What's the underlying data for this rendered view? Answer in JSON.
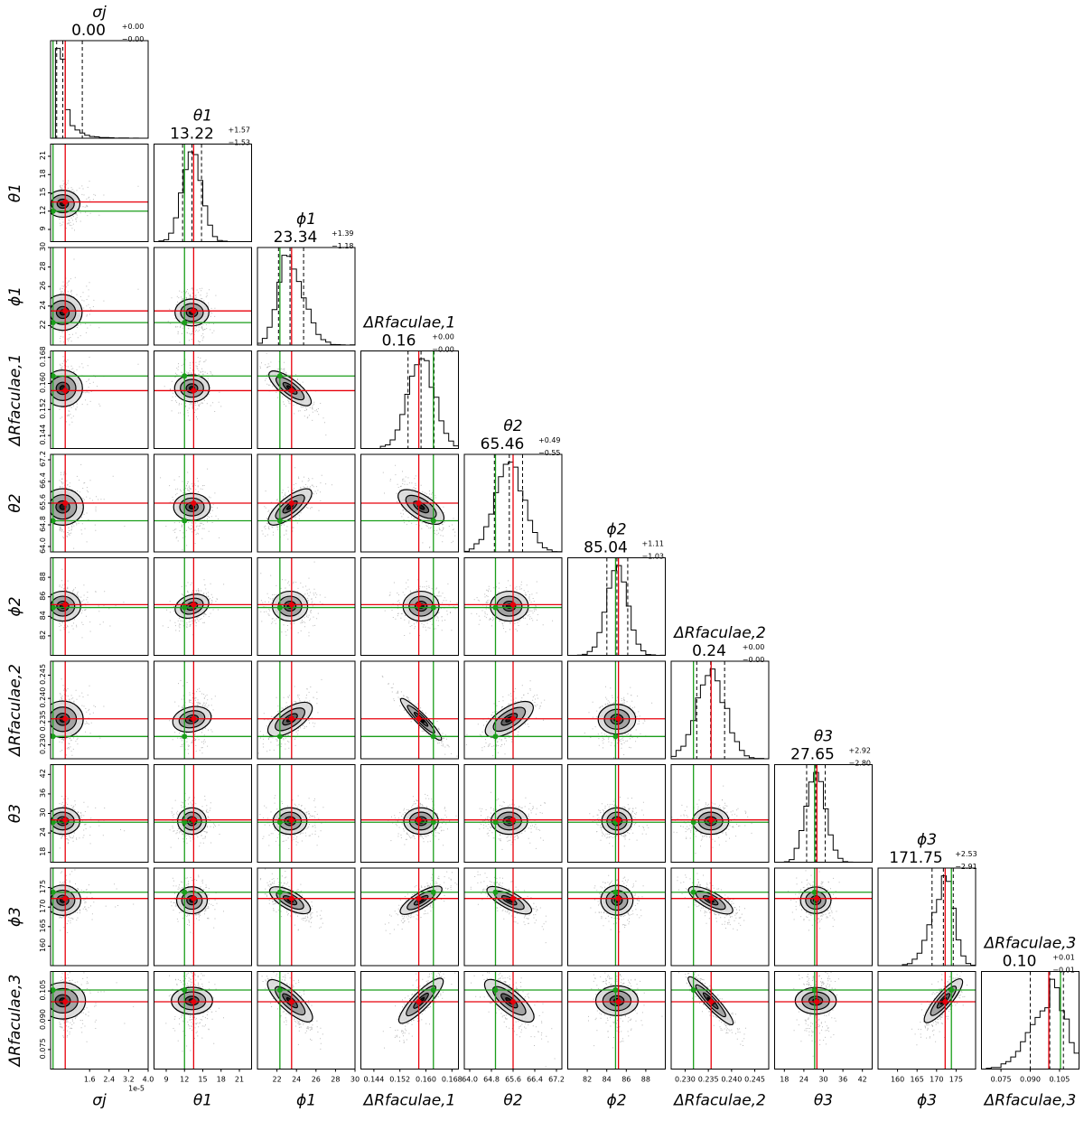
{
  "chart_data": {
    "type": "corner",
    "parameters": [
      {
        "key": "sigma_j",
        "label": "σj",
        "title_value": "0.00",
        "title_plus": "+0.00",
        "title_minus": "−0.00",
        "range": [
          0.0,
          4e-05
        ],
        "ticks": [
          1.6e-05,
          2.4e-05,
          3.2e-05,
          4e-05
        ],
        "tick_labels": [
          "1.6",
          "2.4",
          "3.2",
          "4.0"
        ],
        "offset_text": "1e-5",
        "median": 5e-06,
        "q16": 2.5e-06,
        "q84": 1.3e-05,
        "truth_red": 6e-06,
        "truth_green": 1e-06,
        "dist": "expo"
      },
      {
        "key": "theta_1",
        "label": "θ1",
        "title_value": "13.22",
        "title_plus": "+1.57",
        "title_minus": "−1.53",
        "range": [
          7,
          23
        ],
        "ticks": [
          9,
          12,
          15,
          18,
          21
        ],
        "tick_labels": [
          "9",
          "12",
          "15",
          "18",
          "21"
        ],
        "median": 13.22,
        "q16": 11.69,
        "q84": 14.79,
        "truth_red": 13.5,
        "truth_green": 12.0,
        "dist": "normal"
      },
      {
        "key": "phi_1",
        "label": "ϕ1",
        "title_value": "23.34",
        "title_plus": "+1.39",
        "title_minus": "−1.18",
        "range": [
          20,
          30
        ],
        "ticks": [
          22,
          24,
          26,
          28,
          30
        ],
        "tick_labels": [
          "22",
          "24",
          "26",
          "28",
          "30"
        ],
        "median": 23.34,
        "q16": 22.16,
        "q84": 24.73,
        "truth_red": 23.5,
        "truth_green": 22.3,
        "dist": "skew"
      },
      {
        "key": "dR_faculae_1",
        "label": "ΔRfaculae,1",
        "title_value": "0.16",
        "title_plus": "+0.00",
        "title_minus": "−0.00",
        "range": [
          0.14,
          0.17
        ],
        "ticks": [
          0.144,
          0.152,
          0.16,
          0.168
        ],
        "tick_labels": [
          "0.144",
          "0.152",
          "0.160",
          "0.168"
        ],
        "median": 0.1585,
        "q16": 0.1545,
        "q84": 0.1625,
        "truth_red": 0.1578,
        "truth_green": 0.1623,
        "dist": "normal"
      },
      {
        "key": "theta_2",
        "label": "θ2",
        "title_value": "65.46",
        "title_plus": "+0.49",
        "title_minus": "−0.55",
        "range": [
          63.8,
          67.4
        ],
        "ticks": [
          64.0,
          64.8,
          65.6,
          66.4,
          67.2
        ],
        "tick_labels": [
          "64.0",
          "64.8",
          "65.6",
          "66.4",
          "67.2"
        ],
        "median": 65.46,
        "q16": 64.91,
        "q84": 65.95,
        "truth_red": 65.6,
        "truth_green": 64.95,
        "dist": "normal"
      },
      {
        "key": "phi_2",
        "label": "ϕ2",
        "title_value": "85.04",
        "title_plus": "+1.11",
        "title_minus": "−1.03",
        "range": [
          80,
          90
        ],
        "ticks": [
          82,
          84,
          86,
          88
        ],
        "tick_labels": [
          "82",
          "84",
          "86",
          "88"
        ],
        "median": 85.04,
        "q16": 84.01,
        "q84": 86.15,
        "truth_red": 85.2,
        "truth_green": 84.9,
        "dist": "normal"
      },
      {
        "key": "dR_faculae_2",
        "label": "ΔRfaculae,2",
        "title_value": "0.24",
        "title_plus": "+0.00",
        "title_minus": "−0.00",
        "range": [
          0.227,
          0.248
        ],
        "ticks": [
          0.23,
          0.235,
          0.24,
          0.245
        ],
        "tick_labels": [
          "0.230",
          "0.235",
          "0.240",
          "0.245"
        ],
        "median": 0.2355,
        "q16": 0.2325,
        "q84": 0.2385,
        "truth_red": 0.2356,
        "truth_green": 0.2318,
        "dist": "normal"
      },
      {
        "key": "theta_3",
        "label": "θ3",
        "title_value": "27.65",
        "title_plus": "+2.92",
        "title_minus": "−2.80",
        "range": [
          15,
          45
        ],
        "ticks": [
          18,
          24,
          30,
          36,
          42
        ],
        "tick_labels": [
          "18",
          "24",
          "30",
          "36",
          "42"
        ],
        "median": 27.65,
        "q16": 24.85,
        "q84": 30.57,
        "truth_red": 28.0,
        "truth_green": 27.3,
        "dist": "normal"
      },
      {
        "key": "phi_3",
        "label": "ϕ3",
        "title_value": "171.75",
        "title_plus": "+2.53",
        "title_minus": "−2.91",
        "range": [
          155,
          180
        ],
        "ticks": [
          160,
          165,
          170,
          175
        ],
        "tick_labels": [
          "160",
          "165",
          "170",
          "175"
        ],
        "median": 171.75,
        "q16": 168.84,
        "q84": 174.28,
        "truth_red": 172.2,
        "truth_green": 173.8,
        "dist": "left"
      },
      {
        "key": "dR_faculae_3",
        "label": "ΔRfaculae,3",
        "title_value": "0.10",
        "title_plus": "+0.01",
        "title_minus": "−0.01",
        "range": [
          0.065,
          0.115
        ],
        "ticks": [
          0.075,
          0.09,
          0.105
        ],
        "tick_labels": [
          "0.075",
          "0.090",
          "0.105"
        ],
        "median": 0.1,
        "q16": 0.09,
        "q84": 0.107,
        "truth_red": 0.0995,
        "truth_green": 0.1055,
        "dist": "left"
      }
    ],
    "correlations": {
      "3_2": -0.75,
      "4_2": 0.7,
      "4_3": -0.6,
      "5_1": 0.3,
      "6_2": 0.6,
      "6_3": -0.95,
      "6_4": 0.65,
      "6_1": 0.15,
      "8_2": -0.65,
      "8_3": 0.75,
      "8_4": -0.7,
      "8_6": -0.7,
      "9_2": -0.7,
      "9_3": 0.8,
      "9_4": -0.7,
      "9_6": -0.9,
      "9_8": 0.75
    },
    "line_colors": {
      "truth_red": "#e8000b",
      "truth_green": "#1a9e1a",
      "quantile": "#000000",
      "hist": "#000000"
    }
  }
}
